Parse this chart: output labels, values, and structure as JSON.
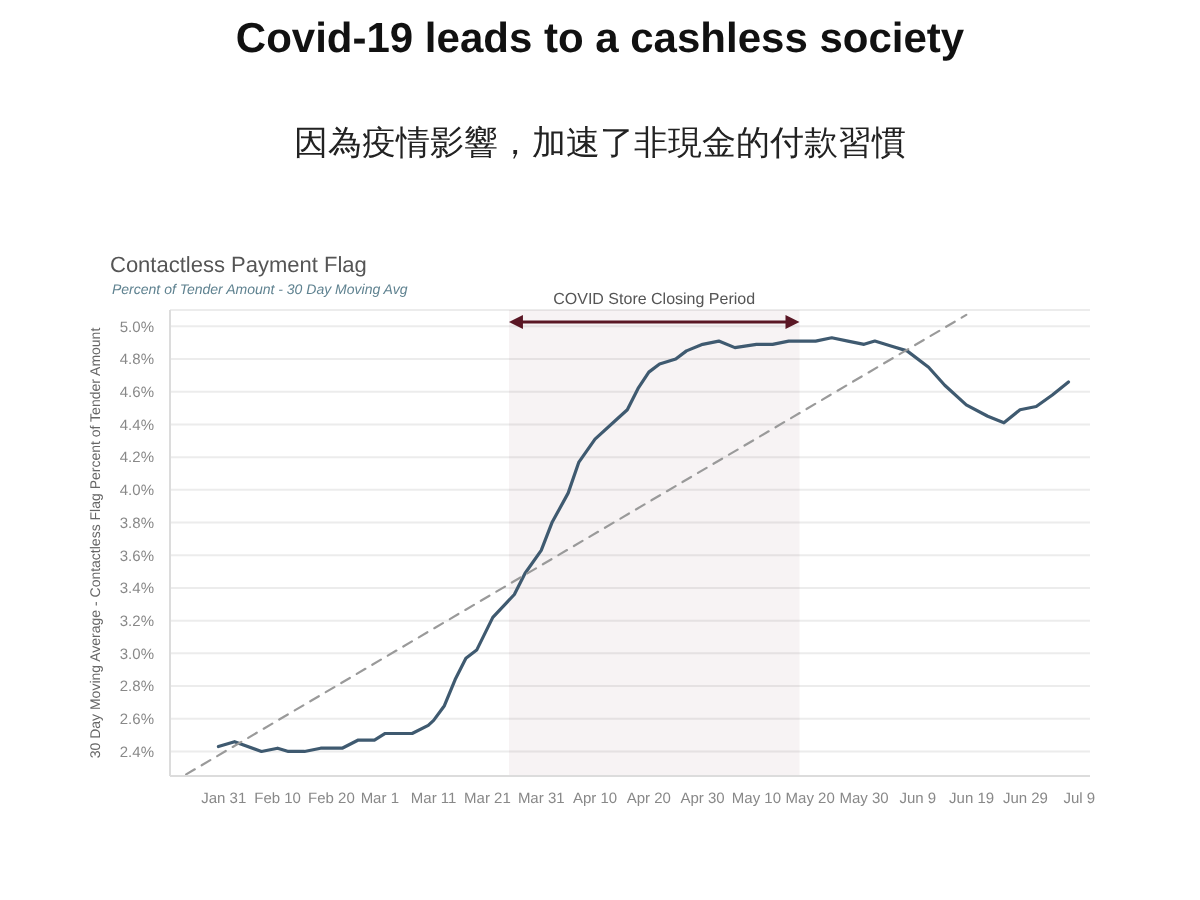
{
  "chart_data": {
    "type": "line",
    "title": "Covid-19 leads to a cashless society",
    "subtitle": "因為疫情影響，加速了非現金的付款習慣",
    "annotations": [
      "Contactless Payment Flag",
      "Percent of Tender Amount - 30 Day Moving Avg"
    ],
    "ylabel": "30 Day Moving Average - Contactless Flag Percent of Tender Amount",
    "series": [
      {
        "color": "#3f5a70",
        "x": [
          "--01-30",
          "--02-02",
          "--02-07",
          "--02-10",
          "--02-12",
          "--02-15",
          "--02-18",
          "--02-22",
          "--02-25",
          "--02-28",
          "--03-02",
          "--03-04",
          "--03-07",
          "--03-10",
          "--03-11",
          "--03-13",
          "--03-15",
          "--03-17",
          "--03-19",
          "--03-22",
          "--03-26",
          "--03-28",
          "--03-31",
          "--04-02",
          "--04-05",
          "--04-07",
          "--04-10",
          "--04-14",
          "--04-16",
          "--04-18",
          "--04-20",
          "--04-22",
          "--04-25",
          "--04-27",
          "--04-30",
          "--05-03",
          "--05-06",
          "--05-10",
          "--05-13",
          "--05-16",
          "--05-18",
          "--05-21",
          "--05-24",
          "--05-27",
          "--05-30",
          "--06-01",
          "--06-04",
          "--06-07",
          "--06-11",
          "--06-14",
          "--06-18",
          "--06-22",
          "--06-25",
          "--06-28",
          "--07-01",
          "--07-04",
          "--07-07"
        ],
        "values": [
          2.43,
          2.46,
          2.4,
          2.42,
          2.4,
          2.4,
          2.42,
          2.42,
          2.47,
          2.47,
          2.51,
          2.51,
          2.51,
          2.56,
          2.59,
          2.68,
          2.84,
          2.97,
          3.02,
          3.22,
          3.36,
          3.49,
          3.63,
          3.8,
          3.98,
          4.17,
          4.31,
          4.43,
          4.49,
          4.62,
          4.72,
          4.77,
          4.8,
          4.85,
          4.89,
          4.91,
          4.87,
          4.89,
          4.89,
          4.91,
          4.91,
          4.91,
          4.93,
          4.91,
          4.89,
          4.91,
          4.88,
          4.85,
          4.75,
          4.64,
          4.52,
          4.45,
          4.41,
          4.49,
          4.51,
          4.58,
          4.66
        ]
      },
      {
        "type": "line",
        "color": "#9a9a9a",
        "line_style": "dashed",
        "x": [
          "--01-24",
          "--06-18"
        ],
        "values": [
          2.26,
          5.07
        ]
      }
    ],
    "bands": [
      {
        "axis": "x",
        "from": "--03-25",
        "to": "--05-18",
        "label": "COVID Store Closing Period",
        "color": "#5a1624"
      }
    ],
    "xlim": [
      "--01-21",
      "--07-11"
    ],
    "xticks": [
      {
        "value": "--01-31",
        "label": "Jan 31"
      },
      {
        "value": "--02-10",
        "label": "Feb 10"
      },
      {
        "value": "--02-20",
        "label": "Feb 20"
      },
      {
        "value": "--03-01",
        "label": "Mar 1"
      },
      {
        "value": "--03-11",
        "label": "Mar 11"
      },
      {
        "value": "--03-21",
        "label": "Mar 21"
      },
      {
        "value": "--03-31",
        "label": "Mar 31"
      },
      {
        "value": "--04-10",
        "label": "Apr 10"
      },
      {
        "value": "--04-20",
        "label": "Apr 20"
      },
      {
        "value": "--04-30",
        "label": "Apr 30"
      },
      {
        "value": "--05-10",
        "label": "May 10"
      },
      {
        "value": "--05-20",
        "label": "May 20"
      },
      {
        "value": "--05-30",
        "label": "May 30"
      },
      {
        "value": "--06-09",
        "label": "Jun 9"
      },
      {
        "value": "--06-19",
        "label": "Jun 19"
      },
      {
        "value": "--06-29",
        "label": "Jun 29"
      },
      {
        "value": "--07-09",
        "label": "Jul 9"
      }
    ],
    "ylim": [
      2.25,
      5.1
    ],
    "yticks": [
      {
        "value": 2.4,
        "label": "2.4%"
      },
      {
        "value": 2.6,
        "label": "2.6%"
      },
      {
        "value": 2.8,
        "label": "2.8%"
      },
      {
        "value": 3.0,
        "label": "3.0%"
      },
      {
        "value": 3.2,
        "label": "3.2%"
      },
      {
        "value": 3.4,
        "label": "3.4%"
      },
      {
        "value": 3.6,
        "label": "3.6%"
      },
      {
        "value": 3.8,
        "label": "3.8%"
      },
      {
        "value": 4.0,
        "label": "4.0%"
      },
      {
        "value": 4.2,
        "label": "4.2%"
      },
      {
        "value": 4.4,
        "label": "4.4%"
      },
      {
        "value": 4.6,
        "label": "4.6%"
      },
      {
        "value": 4.8,
        "label": "4.8%"
      },
      {
        "value": 5.0,
        "label": "5.0%"
      }
    ],
    "grid": "y",
    "line_style": "solid"
  }
}
